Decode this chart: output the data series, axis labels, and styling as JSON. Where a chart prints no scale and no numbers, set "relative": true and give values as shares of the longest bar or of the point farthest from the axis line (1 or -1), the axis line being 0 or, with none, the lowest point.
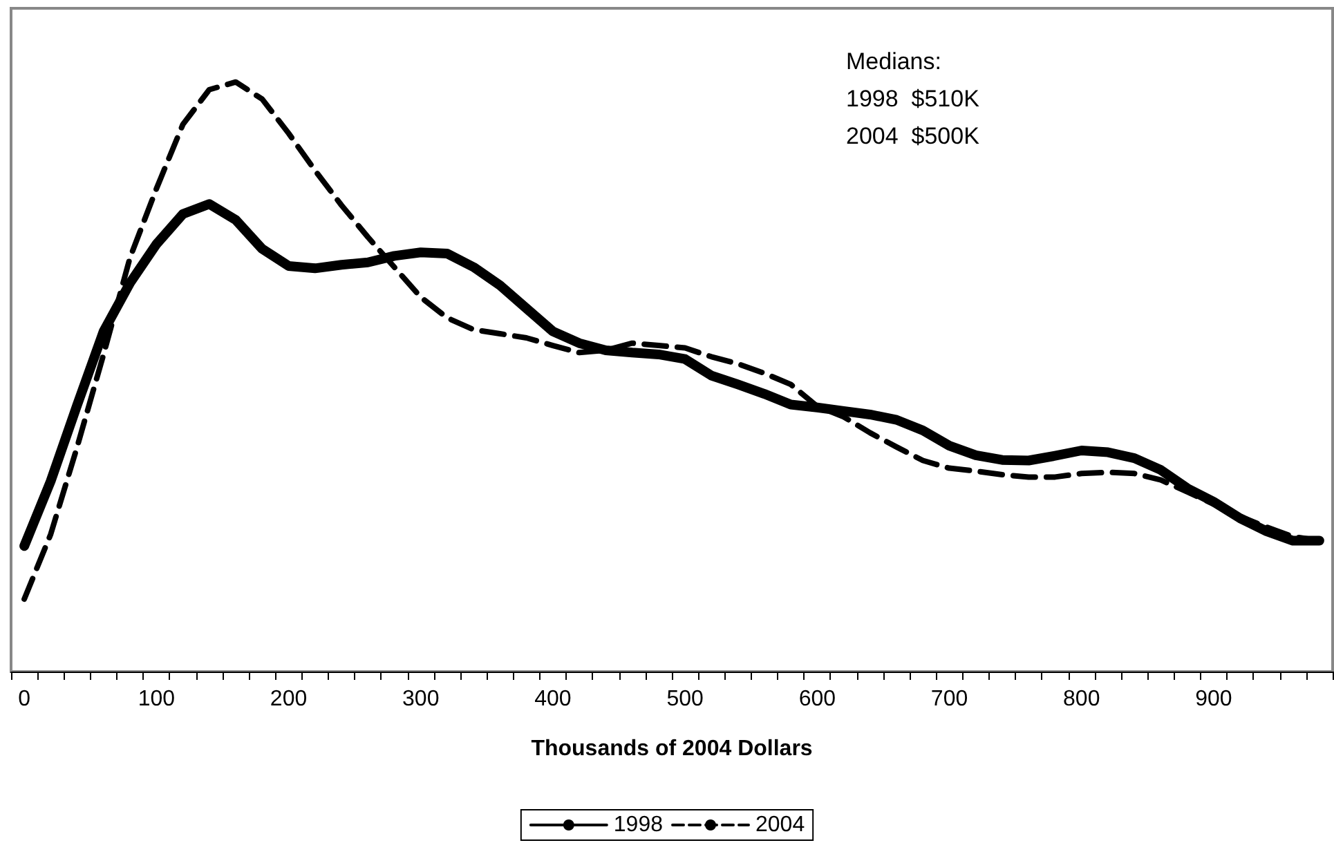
{
  "chart_data": {
    "type": "line",
    "relative": true,
    "xlabel": "Thousands of 2004 Dollars",
    "categories": [
      "0",
      null,
      null,
      null,
      null,
      "100",
      null,
      null,
      null,
      null,
      "200",
      null,
      null,
      null,
      null,
      "300",
      null,
      null,
      null,
      null,
      "400",
      null,
      null,
      null,
      null,
      "500",
      null,
      null,
      null,
      null,
      "600",
      null,
      null,
      null,
      null,
      "700",
      null,
      null,
      null,
      null,
      "800",
      null,
      null,
      null,
      null,
      "900",
      null,
      null,
      null,
      null
    ],
    "series": [
      {
        "name": "1998",
        "color": "#000000",
        "line_style": "solid",
        "values": [
          0.213,
          0.323,
          0.452,
          0.577,
          0.659,
          0.725,
          0.776,
          0.793,
          0.766,
          0.717,
          0.688,
          0.684,
          0.69,
          0.694,
          0.705,
          0.711,
          0.709,
          0.686,
          0.655,
          0.616,
          0.577,
          0.557,
          0.545,
          0.541,
          0.538,
          0.53,
          0.502,
          0.487,
          0.471,
          0.453,
          0.448,
          0.442,
          0.436,
          0.427,
          0.409,
          0.383,
          0.367,
          0.359,
          0.358,
          0.366,
          0.375,
          0.372,
          0.362,
          0.342,
          0.311,
          0.288,
          0.26,
          0.238,
          0.222,
          0.222
        ]
      },
      {
        "name": "2004",
        "color": "#000000",
        "line_style": "dashed",
        "values": [
          0.123,
          0.233,
          0.381,
          0.538,
          0.702,
          0.819,
          0.928,
          0.987,
          1,
          0.971,
          0.913,
          0.85,
          0.791,
          0.737,
          0.686,
          0.635,
          0.6,
          0.58,
          0.573,
          0.566,
          0.553,
          0.541,
          0.545,
          0.557,
          0.553,
          0.549,
          0.534,
          0.522,
          0.506,
          0.487,
          0.45,
          0.432,
          0.405,
          0.381,
          0.358,
          0.345,
          0.34,
          0.334,
          0.33,
          0.33,
          0.336,
          0.338,
          0.336,
          0.325,
          0.305,
          0.284,
          0.263,
          0.245,
          0.229,
          0.222
        ]
      }
    ],
    "annotations": [
      "Medians:",
      "1998  $510K",
      "2004  $500K"
    ],
    "legend": "bottom",
    "grid": false,
    "marker": "none"
  }
}
